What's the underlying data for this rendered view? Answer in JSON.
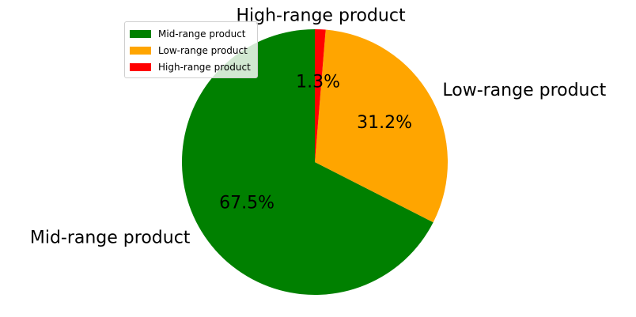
{
  "chart_data": {
    "type": "pie",
    "categories": [
      "Mid-range product",
      "Low-range product",
      "High-range product"
    ],
    "values": [
      67.5,
      31.2,
      1.3
    ],
    "value_labels": [
      "67.5%",
      "31.2%",
      "1.3%"
    ],
    "colors": [
      "#008000",
      "#FFA500",
      "#FF0000"
    ],
    "title": "",
    "legend": {
      "placement": "upper-left",
      "entries": [
        "Mid-range product",
        "Low-range product",
        "High-range product"
      ]
    }
  }
}
